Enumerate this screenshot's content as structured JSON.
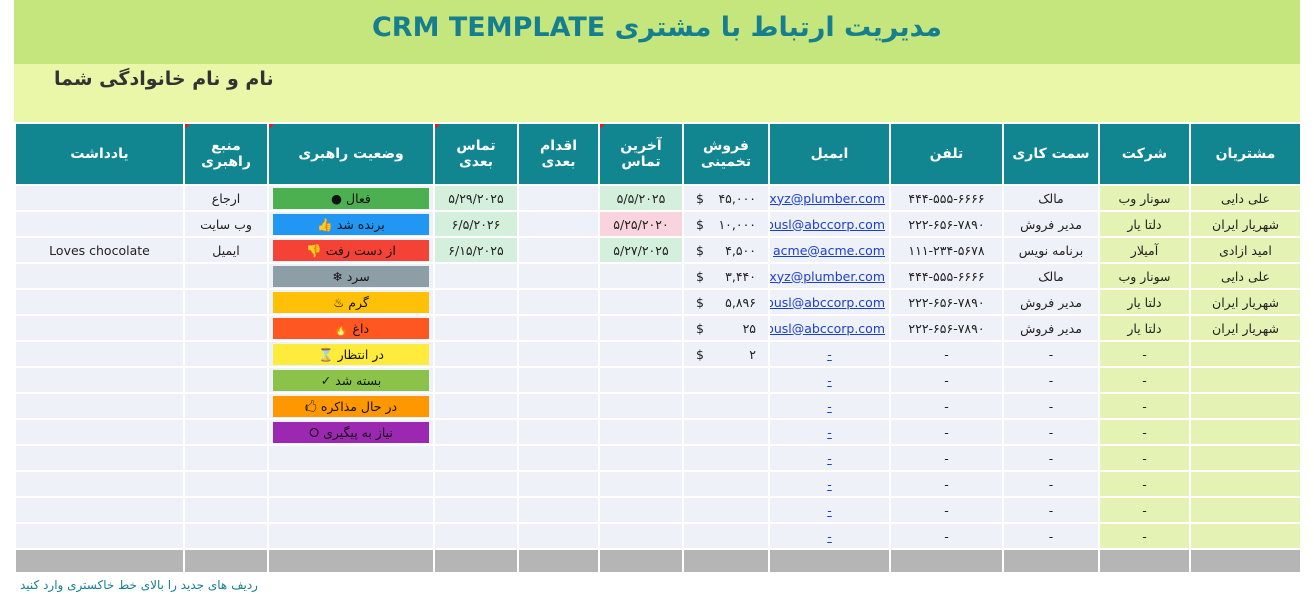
{
  "header": {
    "title": "مدیریت ارتباط با مشتری     CRM TEMPLATE",
    "name": "نام و نام خانوادگی شما"
  },
  "columns": [
    "مشتریان",
    "شرکت",
    "سمت کاری",
    "تلفن",
    "ایمیل",
    "فروش تخمینی",
    "آخرین تماس",
    "اقدام بعدی",
    "تماس بعدی",
    "وضعیت راهبری",
    "منبع راهبری",
    "یادداشت"
  ],
  "currency": "$",
  "rows": [
    {
      "customer": "علی دایی",
      "company": "سونار وب",
      "role": "مالک",
      "phone": "۴۴۴-۵۵۵-۶۶۶۶",
      "email": "xyz@plumber.com",
      "sales": "۴۵,۰۰۰",
      "last": "۵/۵/۲۰۲۵",
      "next_action": "",
      "next_contact": "۵/۲۹/۲۰۲۵",
      "source": "ارجاع",
      "note": ""
    },
    {
      "customer": "شهریار ایران",
      "company": "دلتا یار",
      "role": "مدیر فروش",
      "phone": "۲۲۲-۶۵۶-۷۸۹۰",
      "email": "busl@abccorp.com",
      "sales": "۱۰,۰۰۰",
      "last": "۵/۲۵/۲۰۲۰",
      "next_action": "",
      "next_contact": "۶/۵/۲۰۲۶",
      "source": "وب سایت",
      "note": ""
    },
    {
      "customer": "امید ازادی",
      "company": "آمیلار",
      "role": "برنامه نویس",
      "phone": "۱۱۱-۲۳۴-۵۶۷۸",
      "email": "acme@acme.com",
      "sales": "۴,۵۰۰",
      "last": "۵/۲۷/۲۰۲۵",
      "next_action": "",
      "next_contact": "۶/۱۵/۲۰۲۵",
      "source": "ایمیل",
      "note": "Loves chocolate"
    },
    {
      "customer": "علی دایی",
      "company": "سونار وب",
      "role": "مالک",
      "phone": "۴۴۴-۵۵۵-۶۶۶۶",
      "email": "xyz@plumber.com",
      "sales": "۳,۴۴۰",
      "last": "",
      "next_action": "",
      "next_contact": "",
      "source": "",
      "note": ""
    },
    {
      "customer": "شهریار ایران",
      "company": "دلتا یار",
      "role": "مدیر فروش",
      "phone": "۲۲۲-۶۵۶-۷۸۹۰",
      "email": "busl@abccorp.com",
      "sales": "۵,۸۹۶",
      "last": "",
      "next_action": "",
      "next_contact": "",
      "source": "",
      "note": ""
    },
    {
      "customer": "شهریار ایران",
      "company": "دلتا یار",
      "role": "مدیر فروش",
      "phone": "۲۲۲-۶۵۶-۷۸۹۰",
      "email": "busl@abccorp.com",
      "sales": "۲۵",
      "last": "",
      "next_action": "",
      "next_contact": "",
      "source": "",
      "note": ""
    },
    {
      "customer": "",
      "company": "-",
      "role": "-",
      "phone": "-",
      "email": "-",
      "sales": "۲",
      "last": "",
      "next_action": "",
      "next_contact": "",
      "source": "",
      "note": ""
    },
    {
      "customer": "",
      "company": "-",
      "role": "-",
      "phone": "-",
      "email": "-",
      "sales": "",
      "last": "",
      "next_action": "",
      "next_contact": "",
      "source": "",
      "note": ""
    },
    {
      "customer": "",
      "company": "-",
      "role": "-",
      "phone": "-",
      "email": "-",
      "sales": "",
      "last": "",
      "next_action": "",
      "next_contact": "",
      "source": "",
      "note": ""
    },
    {
      "customer": "",
      "company": "-",
      "role": "-",
      "phone": "-",
      "email": "-",
      "sales": "",
      "last": "",
      "next_action": "",
      "next_contact": "",
      "source": "",
      "note": ""
    },
    {
      "customer": "",
      "company": "-",
      "role": "-",
      "phone": "-",
      "email": "-",
      "sales": "",
      "last": "",
      "next_action": "",
      "next_contact": "",
      "source": "",
      "note": ""
    },
    {
      "customer": "",
      "company": "-",
      "role": "-",
      "phone": "-",
      "email": "-",
      "sales": "",
      "last": "",
      "next_action": "",
      "next_contact": "",
      "source": "",
      "note": ""
    },
    {
      "customer": "",
      "company": "-",
      "role": "-",
      "phone": "-",
      "email": "-",
      "sales": "",
      "last": "",
      "next_action": "",
      "next_contact": "",
      "source": "",
      "note": ""
    },
    {
      "customer": "",
      "company": "-",
      "role": "-",
      "phone": "-",
      "email": "-",
      "sales": "",
      "last": "",
      "next_action": "",
      "next_contact": "",
      "source": "",
      "note": ""
    }
  ],
  "statuses": [
    {
      "label": "فعال ●",
      "color": "#4caf50"
    },
    {
      "label": "برنده شد 👍",
      "color": "#2196f3"
    },
    {
      "label": "از دست رفت 👎",
      "color": "#f44336"
    },
    {
      "label": "سرد ❄",
      "color": "#8e9ea6"
    },
    {
      "label": "گرم ♨",
      "color": "#ffc107"
    },
    {
      "label": "داغ 🔥",
      "color": "#ff5722"
    },
    {
      "label": "در انتظار ⌛",
      "color": "#ffeb3b"
    },
    {
      "label": "بسته شد ✓",
      "color": "#8bc34a"
    },
    {
      "label": "در حال مذاکره 🖒",
      "color": "#ff9800"
    },
    {
      "label": "نیاز به پیگیری ⭘",
      "color": "#9c27b0"
    }
  ],
  "footer_note": "ردیف های جدید را بالای خط خاکستری وارد کنید"
}
